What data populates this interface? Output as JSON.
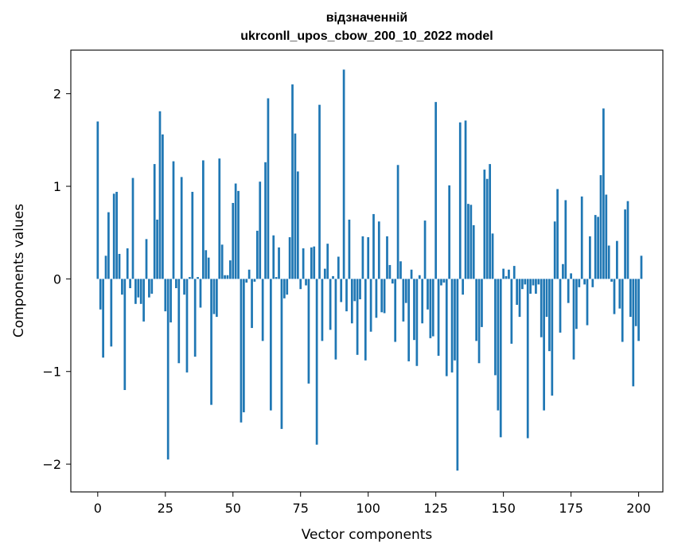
{
  "chart_data": {
    "type": "bar",
    "title_line1": "відзначенній",
    "title_line2": "ukrconll_upos_cbow_200_10_2022 model",
    "xlabel": "Vector components",
    "ylabel": "Components values",
    "xlim": [
      -9.95,
      208.95
    ],
    "ylim": [
      -2.3,
      2.47
    ],
    "xticks": [
      0,
      25,
      50,
      75,
      100,
      125,
      150,
      175,
      200
    ],
    "xtick_labels": [
      "0",
      "25",
      "50",
      "75",
      "100",
      "125",
      "150",
      "175",
      "200"
    ],
    "yticks": [
      -2,
      -1,
      0,
      1,
      2
    ],
    "ytick_labels": [
      "−2",
      "−1",
      "0",
      "1",
      "2"
    ],
    "bar_color": "#1f77b4",
    "values": [
      1.7,
      -0.33,
      -0.85,
      0.25,
      0.72,
      -0.73,
      0.92,
      0.94,
      0.27,
      -0.17,
      -1.2,
      0.33,
      -0.1,
      1.09,
      -0.27,
      -0.2,
      -0.27,
      -0.46,
      0.43,
      -0.2,
      -0.16,
      1.24,
      0.64,
      1.81,
      1.56,
      -0.35,
      -1.95,
      -0.47,
      1.27,
      -0.1,
      -0.91,
      1.1,
      -0.17,
      -1.01,
      0.02,
      0.94,
      -0.84,
      0.02,
      -0.31,
      1.28,
      0.31,
      0.23,
      -1.36,
      -0.38,
      -0.41,
      1.3,
      0.37,
      0.04,
      0.04,
      0.2,
      0.82,
      1.03,
      0.95,
      -1.55,
      -1.44,
      -0.04,
      0.1,
      -0.53,
      -0.03,
      0.52,
      1.05,
      -0.67,
      1.26,
      1.95,
      -1.42,
      0.47,
      0.02,
      0.34,
      -1.62,
      -0.21,
      -0.17,
      0.45,
      2.1,
      1.57,
      1.16,
      -0.11,
      0.33,
      -0.07,
      -1.13,
      0.34,
      0.35,
      -1.79,
      1.88,
      -0.67,
      0.11,
      0.38,
      -0.55,
      0.03,
      -0.87,
      0.24,
      -0.25,
      2.26,
      -0.35,
      0.64,
      -0.48,
      -0.24,
      -0.82,
      -0.22,
      0.46,
      -0.88,
      0.45,
      -0.57,
      0.7,
      -0.42,
      0.62,
      -0.36,
      -0.37,
      0.46,
      0.15,
      -0.05,
      -0.68,
      1.23,
      0.19,
      -0.46,
      -0.26,
      -0.89,
      0.1,
      -0.66,
      -0.94,
      0.04,
      -0.48,
      0.63,
      -0.33,
      -0.64,
      -0.62,
      1.91,
      -0.83,
      -0.07,
      -0.04,
      -1.05,
      1.01,
      -1.01,
      -0.88,
      -2.07,
      1.69,
      -0.17,
      1.71,
      0.81,
      0.8,
      0.58,
      -0.67,
      -0.91,
      -0.52,
      1.18,
      1.08,
      1.24,
      0.49,
      -1.04,
      -1.42,
      -1.71,
      0.11,
      0.03,
      0.1,
      -0.7,
      0.14,
      -0.28,
      -0.41,
      -0.11,
      -0.06,
      -1.72,
      -0.16,
      -0.07,
      -0.16,
      -0.06,
      -0.63,
      -1.42,
      -0.41,
      -0.78,
      -1.26,
      0.62,
      0.97,
      -0.58,
      0.16,
      0.85,
      -0.26,
      0.06,
      -0.87,
      -0.54,
      -0.09,
      0.89,
      -0.06,
      -0.5,
      0.46,
      -0.09,
      0.69,
      0.67,
      1.12,
      1.84,
      0.91,
      0.36,
      -0.03,
      -0.38,
      0.41,
      -0.32,
      -0.68,
      0.75,
      0.84,
      -0.41,
      -1.16,
      -0.51,
      -0.67,
      0.25
    ]
  }
}
